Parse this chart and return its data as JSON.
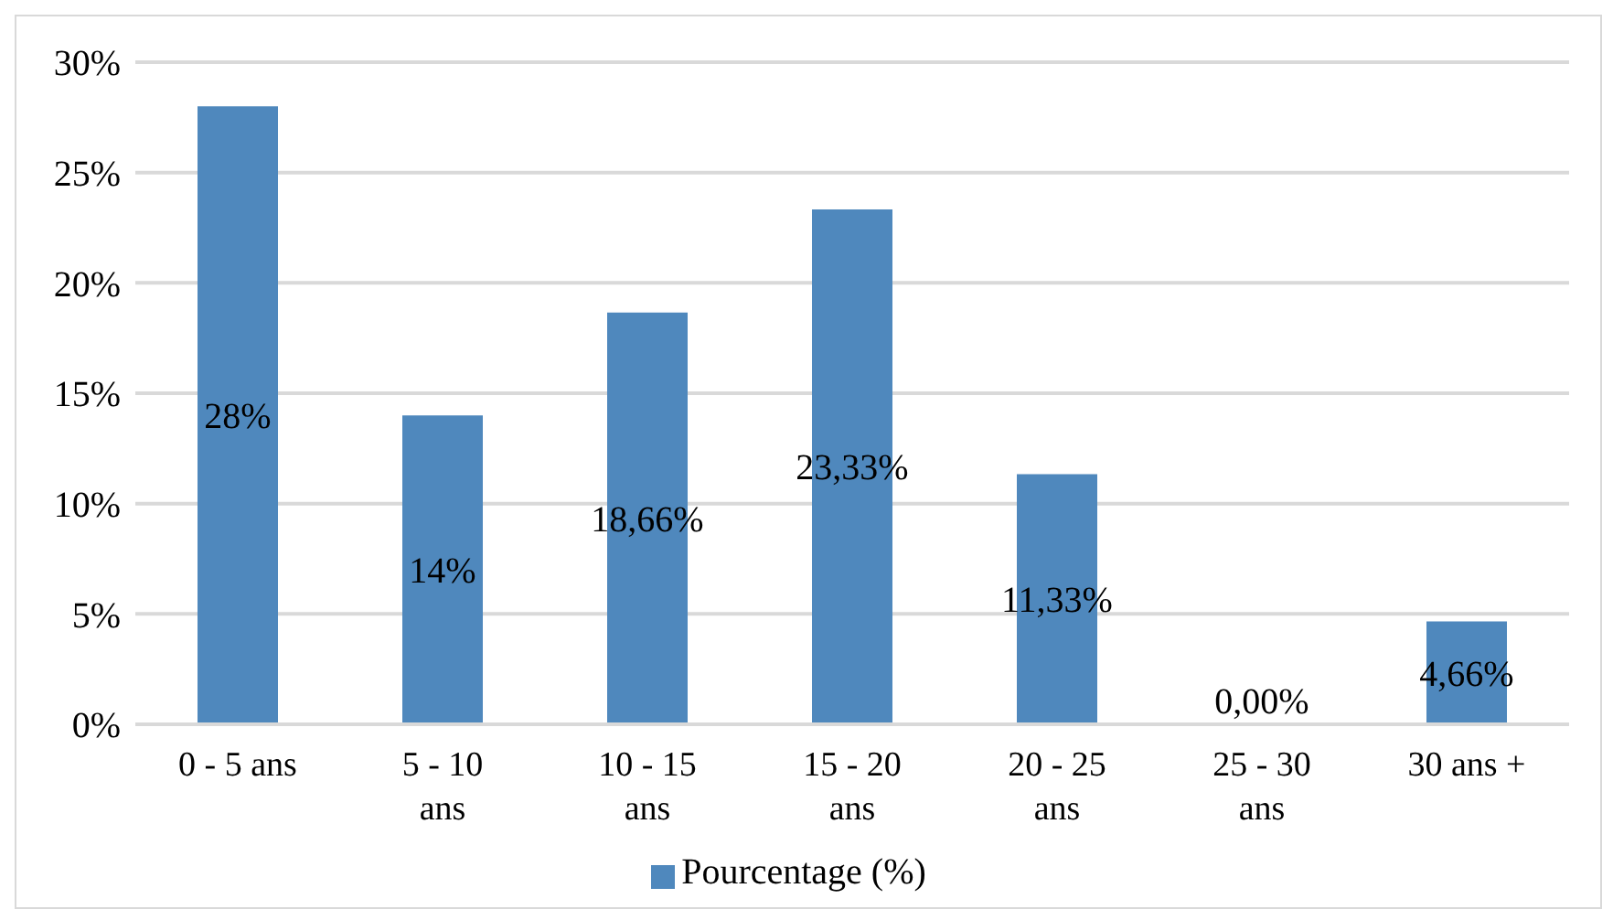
{
  "chart_data": {
    "type": "bar",
    "categories": [
      "0 - 5 ans",
      "5 - 10 ans",
      "10 - 15 ans",
      "15 - 20 ans",
      "20 - 25 ans",
      "25 - 30 ans",
      "30 ans +"
    ],
    "series": [
      {
        "name": "Pourcentage (%)",
        "color": "#4f88bd",
        "values": [
          28,
          14,
          18.66,
          23.33,
          11.33,
          0,
          4.66
        ],
        "value_labels": [
          "28%",
          "14%",
          "18,66%",
          "23,33%",
          "11,33%",
          "0,00%",
          "4,66%"
        ]
      }
    ],
    "ylim": [
      0,
      30
    ],
    "yticks": [
      {
        "value": 0,
        "label": "0%"
      },
      {
        "value": 5,
        "label": "5%"
      },
      {
        "value": 10,
        "label": "10%"
      },
      {
        "value": 15,
        "label": "15%"
      },
      {
        "value": 20,
        "label": "20%"
      },
      {
        "value": 25,
        "label": "25%"
      },
      {
        "value": 30,
        "label": "30%"
      }
    ],
    "grid": "y",
    "legend": "bottom"
  }
}
